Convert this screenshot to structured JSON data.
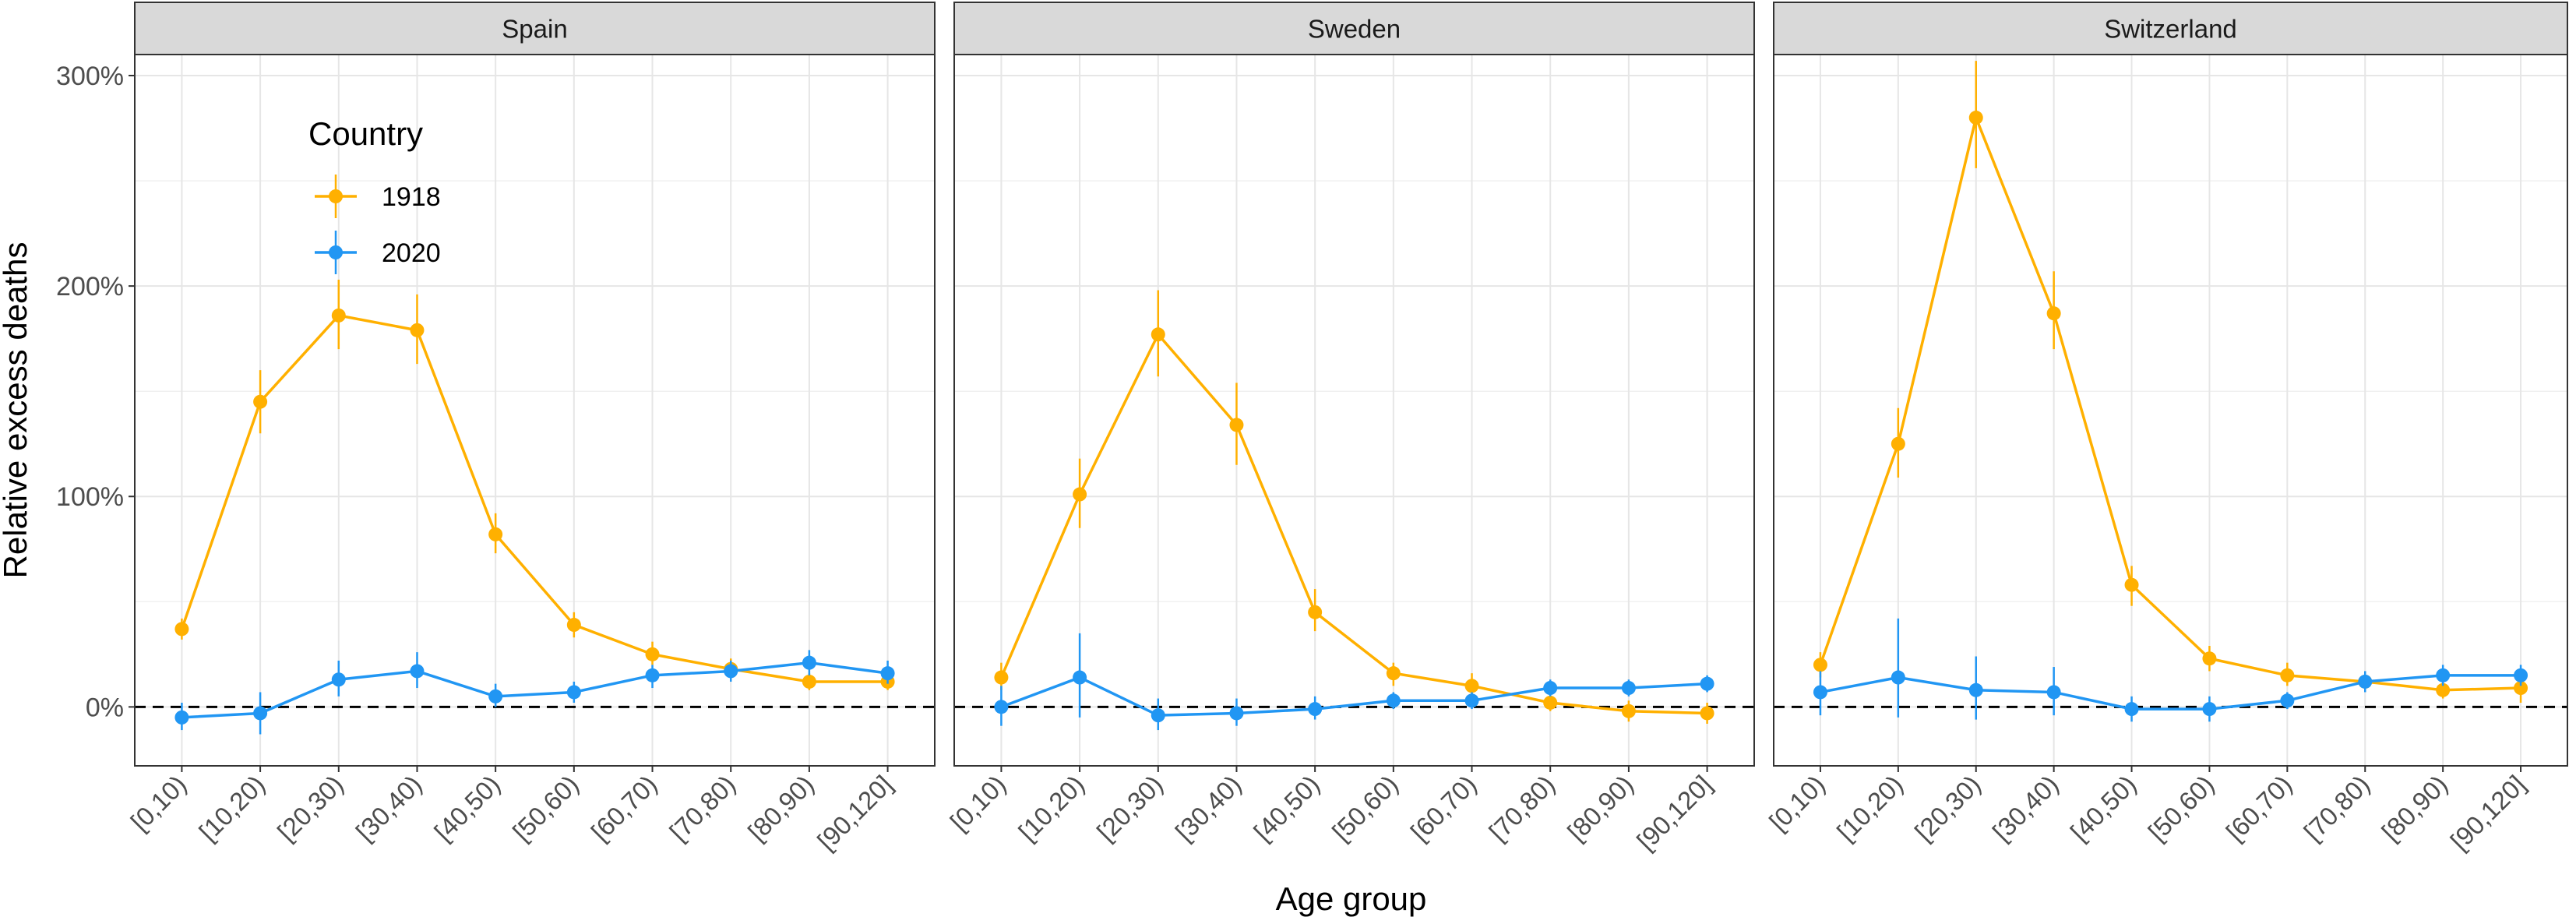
{
  "chart_data": {
    "type": "line",
    "facet_by": "country",
    "facets": [
      "Spain",
      "Sweden",
      "Switzerland"
    ],
    "xlabel": "Age group",
    "ylabel": "Relative excess deaths",
    "categories": [
      "[0,10)",
      "[10,20)",
      "[20,30)",
      "[30,40)",
      "[40,50)",
      "[50,60)",
      "[60,70)",
      "[70,80)",
      "[80,90)",
      "[90,120]"
    ],
    "y_ticks": [
      0,
      100,
      200,
      300
    ],
    "y_tick_labels": [
      "0%",
      "100%",
      "200%",
      "300%"
    ],
    "ylim": [
      -28,
      310
    ],
    "reference_line": {
      "y": 0,
      "style": "dashed"
    },
    "legend": {
      "title": "Country",
      "placement": "top-left inside first panel",
      "entries": [
        "1918",
        "2020"
      ]
    },
    "colors": {
      "1918": "#FFB000",
      "2020": "#2196F3"
    },
    "grid": true,
    "panels": [
      {
        "facet": "Spain",
        "series": [
          {
            "name": "1918",
            "values": [
              37,
              145,
              186,
              179,
              82,
              39,
              25,
              18,
              12,
              12
            ],
            "lower": [
              32,
              130,
              170,
              163,
              73,
              33,
              20,
              14,
              8,
              8
            ],
            "upper": [
              42,
              160,
              203,
              196,
              92,
              45,
              31,
              23,
              16,
              16
            ]
          },
          {
            "name": "2020",
            "values": [
              -5,
              -3,
              13,
              17,
              5,
              7,
              15,
              17,
              21,
              16
            ],
            "lower": [
              -11,
              -13,
              5,
              9,
              0,
              2,
              9,
              12,
              15,
              11
            ],
            "upper": [
              2,
              7,
              22,
              26,
              11,
              12,
              20,
              22,
              27,
              22
            ]
          }
        ]
      },
      {
        "facet": "Sweden",
        "series": [
          {
            "name": "1918",
            "values": [
              14,
              101,
              177,
              134,
              45,
              16,
              10,
              2,
              -2,
              -3
            ],
            "lower": [
              8,
              85,
              157,
              115,
              36,
              10,
              4,
              -2,
              -7,
              -8
            ],
            "upper": [
              21,
              118,
              198,
              154,
              56,
              21,
              16,
              6,
              3,
              2
            ]
          },
          {
            "name": "2020",
            "values": [
              0,
              14,
              -4,
              -3,
              -1,
              3,
              3,
              9,
              9,
              11
            ],
            "lower": [
              -9,
              -5,
              -11,
              -9,
              -6,
              -1,
              -1,
              5,
              5,
              7
            ],
            "upper": [
              10,
              35,
              4,
              4,
              5,
              7,
              7,
              13,
              13,
              15
            ]
          }
        ]
      },
      {
        "facet": "Switzerland",
        "series": [
          {
            "name": "1918",
            "values": [
              20,
              125,
              280,
              187,
              58,
              23,
              15,
              12,
              8,
              9
            ],
            "lower": [
              14,
              109,
              256,
              170,
              48,
              17,
              10,
              8,
              4,
              2
            ],
            "upper": [
              26,
              142,
              307,
              207,
              67,
              29,
              21,
              17,
              12,
              17
            ]
          },
          {
            "name": "2020",
            "values": [
              7,
              14,
              8,
              7,
              -1,
              -1,
              3,
              12,
              15,
              15
            ],
            "lower": [
              -4,
              -5,
              -6,
              -4,
              -7,
              -7,
              -1,
              7,
              10,
              10
            ],
            "upper": [
              17,
              42,
              24,
              19,
              5,
              5,
              7,
              17,
              20,
              20
            ]
          }
        ]
      }
    ]
  }
}
